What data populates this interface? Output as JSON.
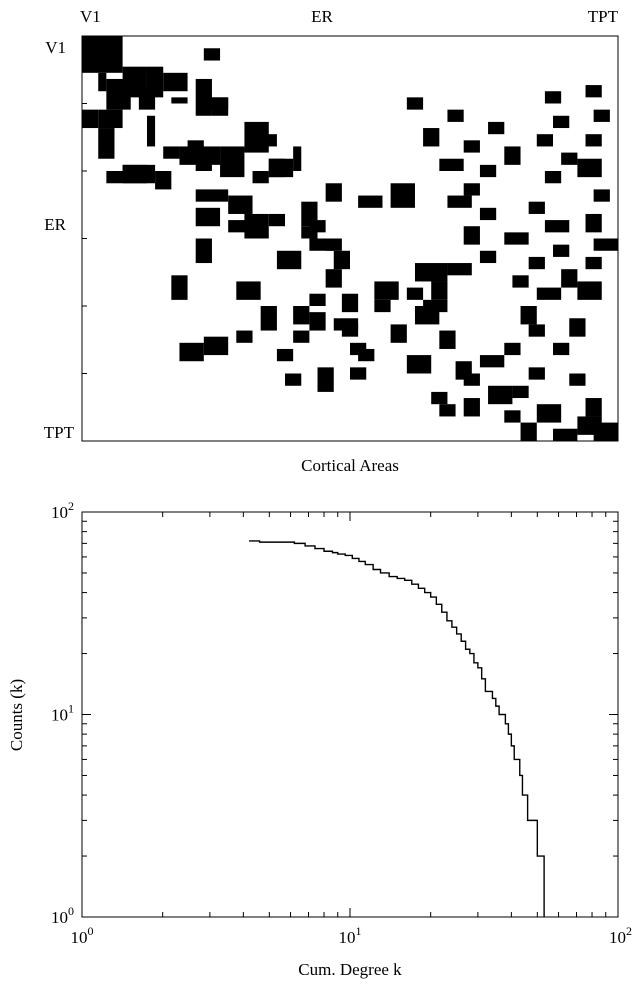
{
  "chart_data": [
    {
      "type": "heatmap",
      "title": "",
      "xlabel": "Cortical Areas",
      "ylabel": "",
      "x_tick_labels": [
        "V1",
        "ER",
        "TPT"
      ],
      "y_tick_labels": [
        "V1",
        "ER",
        "TPT"
      ],
      "colors": {
        "connected": "#000000",
        "absent": "#ffffff"
      },
      "matrix_size": [
        66,
        66
      ],
      "connection_blocks": [
        [
          0,
          0,
          6,
          5
        ],
        [
          6,
          2,
          3,
          1
        ],
        [
          7,
          3,
          5,
          3
        ],
        [
          5,
          5,
          5,
          3
        ],
        [
          9,
          7,
          3,
          2
        ],
        [
          12,
          0,
          3,
          2
        ],
        [
          12,
          2,
          3,
          3
        ],
        [
          15,
          2,
          5,
          2
        ],
        [
          5,
          8,
          5,
          2
        ],
        [
          6,
          10,
          3,
          3
        ],
        [
          13,
          8,
          5,
          1
        ],
        [
          7,
          14,
          6,
          2
        ],
        [
          10,
          16,
          3,
          2
        ],
        [
          18,
          10,
          2,
          2
        ],
        [
          18,
          12,
          3,
          5
        ],
        [
          18,
          17,
          5,
          3
        ],
        [
          14,
          20,
          5,
          3
        ],
        [
          20,
          23,
          3,
          3
        ],
        [
          18,
          26,
          4,
          1
        ],
        [
          21,
          5,
          3,
          4
        ],
        [
          22,
          3,
          2,
          2
        ],
        [
          22,
          9,
          3,
          2
        ],
        [
          25,
          14,
          2,
          4
        ],
        [
          28,
          14,
          3,
          3
        ],
        [
          26,
          18,
          3,
          3
        ],
        [
          29,
          20,
          4,
          3
        ],
        [
          29,
          23,
          2,
          2
        ],
        [
          27,
          27,
          4,
          2
        ],
        [
          31,
          27,
          2,
          2
        ],
        [
          35,
          24,
          3,
          3
        ],
        [
          33,
          28,
          2,
          3
        ],
        [
          2,
          15,
          2,
          2
        ],
        [
          10,
          15,
          2,
          3
        ],
        [
          10,
          11,
          1,
          2
        ],
        [
          17,
          13,
          2,
          2
        ],
        [
          21,
          5,
          3,
          3
        ],
        [
          20,
          14,
          2,
          2
        ],
        [
          16,
          21,
          2,
          3
        ],
        [
          20,
          23,
          3,
          2
        ],
        [
          22,
          21,
          2,
          2
        ],
        [
          30,
          18,
          2,
          4
        ],
        [
          33,
          14,
          4,
          2
        ],
        [
          39,
          11,
          4,
          2
        ],
        [
          40,
          19,
          3,
          3
        ],
        [
          44,
          22,
          4,
          2
        ],
        [
          45,
          28,
          3,
          2
        ],
        [
          46,
          31,
          2,
          3
        ],
        [
          49,
          15,
          3,
          3
        ],
        [
          48,
          19,
          2,
          2
        ],
        [
          50,
          12,
          3,
          3
        ],
        [
          54,
          29,
          4,
          2
        ],
        [
          50,
          33,
          2,
          2
        ],
        [
          52,
          40,
          3,
          3
        ],
        [
          47,
          38,
          3,
          2
        ],
        [
          41,
          40,
          2,
          2
        ],
        [
          43,
          42,
          2,
          3
        ],
        [
          37,
          45,
          2,
          3
        ],
        [
          37,
          41,
          3,
          4
        ],
        [
          40,
          43,
          3,
          2
        ],
        [
          44,
          41,
          3,
          3
        ],
        [
          40,
          36,
          3,
          3
        ],
        [
          43,
          36,
          2,
          2
        ],
        [
          42,
          32,
          3,
          2
        ],
        [
          47,
          32,
          2,
          2
        ],
        [
          51,
          34,
          2,
          2
        ],
        [
          54,
          33,
          2,
          2
        ],
        [
          48,
          44,
          3,
          2
        ],
        [
          53,
          46,
          3,
          2
        ],
        [
          58,
          43,
          2,
          2
        ],
        [
          60,
          44,
          2,
          2
        ],
        [
          59,
          47,
          3,
          2
        ],
        [
          57,
          50,
          3,
          3
        ],
        [
          61,
          52,
          2,
          2
        ],
        [
          63,
          54,
          3,
          2
        ],
        [
          60,
          56,
          3,
          3
        ],
        [
          64,
          58,
          2,
          3
        ],
        [
          62,
          61,
          3,
          3
        ],
        [
          63,
          63,
          3,
          3
        ],
        [
          59,
          62,
          3,
          2
        ],
        [
          55,
          60,
          2,
          2
        ],
        [
          54,
          55,
          2,
          2
        ],
        [
          50,
          58,
          2,
          2
        ],
        [
          46,
          60,
          3,
          2
        ],
        [
          40,
          61,
          3,
          3
        ],
        [
          36,
          62,
          2,
          2
        ],
        [
          33,
          63,
          2,
          3
        ],
        [
          29,
          62,
          3,
          2
        ],
        [
          25,
          63,
          2,
          2
        ],
        [
          20,
          61,
          3,
          3
        ],
        [
          16,
          62,
          2,
          2
        ],
        [
          12,
          63,
          2,
          2
        ],
        [
          8,
          62,
          2,
          2
        ],
        [
          24,
          38,
          4,
          3
        ],
        [
          26,
          34,
          2,
          3
        ],
        [
          24,
          30,
          3,
          2
        ],
        [
          30,
          28,
          2,
          2
        ],
        [
          33,
          30,
          2,
          2
        ],
        [
          35,
          31,
          3,
          2
        ],
        [
          38,
          30,
          3,
          2
        ],
        [
          42,
          28,
          2,
          2
        ],
        [
          44,
          26,
          3,
          2
        ],
        [
          48,
          26,
          2,
          2
        ],
        [
          51,
          24,
          2,
          2
        ],
        [
          55,
          25,
          2,
          2
        ],
        [
          26,
          45,
          2,
          3
        ],
        [
          28,
          49,
          2,
          2
        ],
        [
          31,
          47,
          3,
          2
        ],
        [
          35,
          49,
          2,
          2
        ],
        [
          32,
          52,
          2,
          3
        ],
        [
          36,
          55,
          2,
          2
        ],
        [
          39,
          53,
          2,
          2
        ],
        [
          41,
          56,
          2,
          3
        ],
        [
          44,
          54,
          3,
          2
        ],
        [
          47,
          55,
          2,
          2
        ],
        [
          50,
          52,
          2,
          2
        ],
        [
          52,
          49,
          2,
          3
        ],
        [
          55,
          47,
          2,
          2
        ],
        [
          57,
          53,
          2,
          2
        ],
        [
          10,
          40,
          2,
          2
        ],
        [
          15,
          42,
          3,
          2
        ],
        [
          12,
          45,
          2,
          2
        ],
        [
          17,
          47,
          2,
          2
        ],
        [
          20,
          44,
          2,
          3
        ],
        [
          14,
          50,
          2,
          2
        ],
        [
          18,
          52,
          3,
          2
        ],
        [
          21,
          49,
          2,
          2
        ],
        [
          24,
          47,
          2,
          2
        ],
        [
          27,
          55,
          2,
          2
        ],
        [
          30,
          57,
          2,
          3
        ],
        [
          34,
          58,
          2,
          2
        ],
        [
          38,
          59,
          3,
          2
        ],
        [
          9,
          57,
          2,
          2
        ],
        [
          13,
          58,
          2,
          2
        ],
        [
          16,
          56,
          2,
          2
        ],
        [
          19,
          59,
          2,
          2
        ],
        [
          22,
          57,
          2,
          2
        ]
      ]
    },
    {
      "type": "line",
      "title": "",
      "xlabel": "Cum. Degree k",
      "ylabel": "Counts (k)",
      "xscale": "log",
      "yscale": "log",
      "xlim": [
        1,
        100
      ],
      "ylim": [
        1,
        100
      ],
      "x_tick_labels": [
        {
          "base": "10",
          "exp": "0"
        },
        {
          "base": "10",
          "exp": "1"
        },
        {
          "base": "10",
          "exp": "2"
        }
      ],
      "y_tick_labels": [
        {
          "base": "10",
          "exp": "0"
        },
        {
          "base": "10",
          "exp": "1"
        },
        {
          "base": "10",
          "exp": "2"
        }
      ],
      "grid": false,
      "series": [
        {
          "color": "#000000",
          "x": [
            4.2,
            4.6,
            5.0,
            6.2,
            6.8,
            7.4,
            8.0,
            8.6,
            9.0,
            9.6,
            10.2,
            10.8,
            11.4,
            12.2,
            13.0,
            14.0,
            15.0,
            16.0,
            17.0,
            18.0,
            19.0,
            20.0,
            21.0,
            22.0,
            23.0,
            24.0,
            25.0,
            26.0,
            27.0,
            28.0,
            29.0,
            30.0,
            31.0,
            32.0,
            33.0,
            34.0,
            35.0,
            36.0,
            37.0,
            38.0,
            39.0,
            40.0,
            41.0,
            42.0,
            43.0,
            44.0,
            45.0,
            46.0,
            47.0,
            48.0,
            49.0,
            50.0,
            51.0,
            52.0,
            53.0
          ],
          "y": [
            72,
            71,
            71,
            70,
            68,
            66,
            64,
            63,
            62,
            61,
            59,
            57,
            55,
            52,
            50,
            48,
            47,
            46,
            44,
            42,
            40,
            38,
            35,
            32,
            29,
            27,
            25,
            23,
            21,
            20,
            18,
            17,
            15,
            13,
            13,
            12,
            11,
            10,
            10,
            9,
            8,
            7,
            6,
            6,
            5,
            4,
            4,
            3,
            3,
            3,
            3,
            2,
            2,
            2,
            1
          ]
        }
      ]
    }
  ]
}
